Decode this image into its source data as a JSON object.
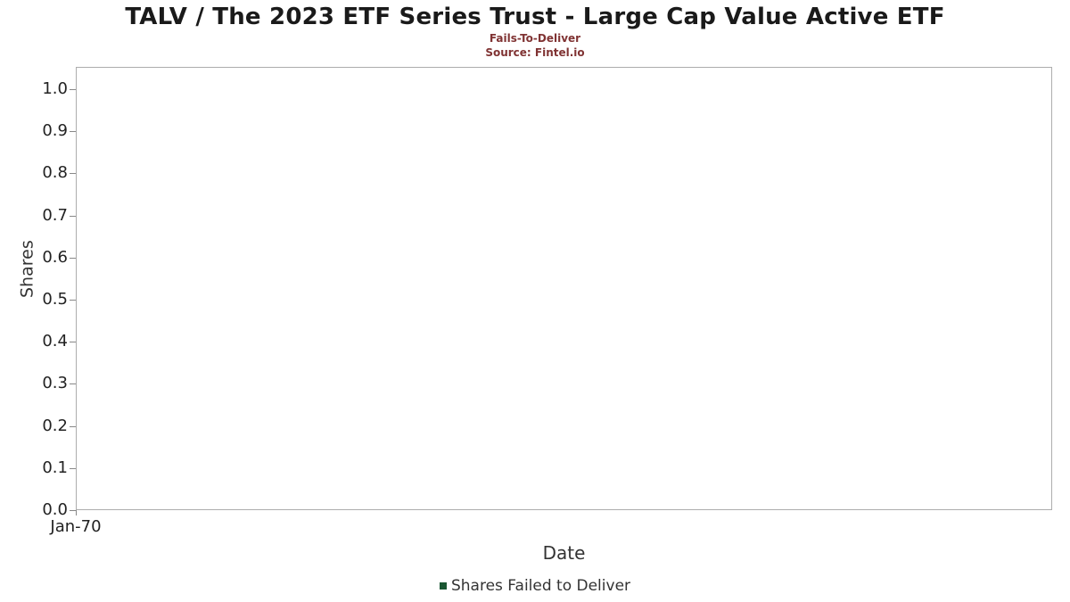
{
  "header": {
    "title": "TALV / The 2023 ETF Series Trust - Large Cap Value Active ETF",
    "subtitle": "Fails-To-Deliver",
    "source": "Source: Fintel.io"
  },
  "colors": {
    "subtitle_text": "#803333",
    "legend_marker": "#1a5632",
    "axis_border": "#adadad",
    "tick_text": "#222222"
  },
  "chart_data": {
    "type": "bar",
    "title": "TALV / The 2023 ETF Series Trust - Large Cap Value Active ETF",
    "subtitle": "Fails-To-Deliver",
    "source": "Source: Fintel.io",
    "xlabel": "Date",
    "ylabel": "Shares",
    "x_ticks": [
      "Jan-70"
    ],
    "y_ticks": [
      0.0,
      0.1,
      0.2,
      0.3,
      0.4,
      0.5,
      0.6,
      0.7,
      0.8,
      0.9,
      1.0
    ],
    "ylim": [
      0.0,
      1.0
    ],
    "grid": false,
    "legend_position": "bottom",
    "series": [
      {
        "name": "Shares Failed to Deliver",
        "x": [],
        "values": []
      }
    ]
  },
  "legend": {
    "items": [
      {
        "label": "Shares Failed to Deliver",
        "color": "#1a5632"
      }
    ]
  }
}
